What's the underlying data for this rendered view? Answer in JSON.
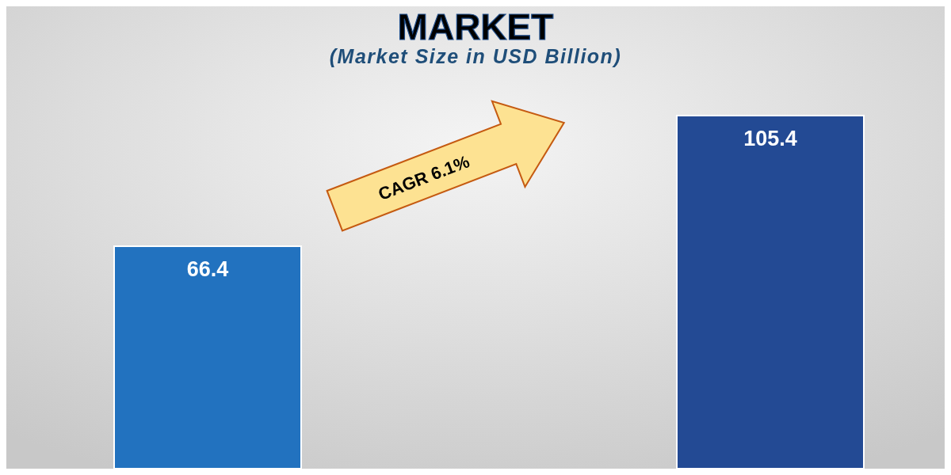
{
  "chart_data": {
    "type": "bar",
    "title": "MARKET",
    "subtitle": "(Market Size in USD Billion)",
    "categories": [
      null,
      null
    ],
    "values": [
      66.4,
      105.4
    ],
    "colors": [
      "#2272bf",
      "#234a94"
    ],
    "data_labels": true,
    "annotations": [
      "CAGR 6.1%"
    ]
  }
}
